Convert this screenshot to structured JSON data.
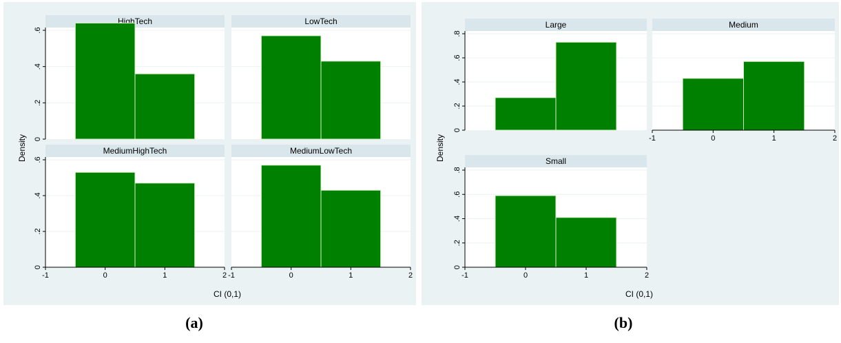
{
  "figure_labels": [
    "(a)",
    "(b)"
  ],
  "chart_data": [
    {
      "type": "bar",
      "group": "(a)",
      "ylabel": "Density",
      "xlabel": "CI (0,1)",
      "xlim": [
        -1,
        2
      ],
      "ylim": [
        0,
        0.6
      ],
      "xticks": [
        "-1",
        "0",
        "1",
        "2"
      ],
      "yticks": [
        "0",
        ".2",
        ".4",
        ".6"
      ],
      "grid": true,
      "panels": [
        {
          "title": "HighTech",
          "categories": [
            "0",
            "1"
          ],
          "values": [
            0.64,
            0.36
          ]
        },
        {
          "title": "LowTech",
          "categories": [
            "0",
            "1"
          ],
          "values": [
            0.57,
            0.43
          ]
        },
        {
          "title": "MediumHighTech",
          "categories": [
            "0",
            "1"
          ],
          "values": [
            0.53,
            0.47
          ]
        },
        {
          "title": "MediumLowTech",
          "categories": [
            "0",
            "1"
          ],
          "values": [
            0.57,
            0.43
          ]
        }
      ]
    },
    {
      "type": "bar",
      "group": "(b)",
      "ylabel": "Density",
      "xlabel": "CI (0,1)",
      "xlim": [
        -1,
        2
      ],
      "ylim": [
        0,
        0.8
      ],
      "xticks": [
        "-1",
        "0",
        "1",
        "2"
      ],
      "yticks": [
        "0",
        ".2",
        ".4",
        ".6",
        ".8"
      ],
      "grid": true,
      "panels": [
        {
          "title": "Large",
          "categories": [
            "0",
            "1"
          ],
          "values": [
            0.27,
            0.73
          ]
        },
        {
          "title": "Medium",
          "categories": [
            "0",
            "1"
          ],
          "values": [
            0.43,
            0.57
          ]
        },
        {
          "title": "Small",
          "categories": [
            "0",
            "1"
          ],
          "values": [
            0.59,
            0.41
          ]
        }
      ]
    }
  ]
}
